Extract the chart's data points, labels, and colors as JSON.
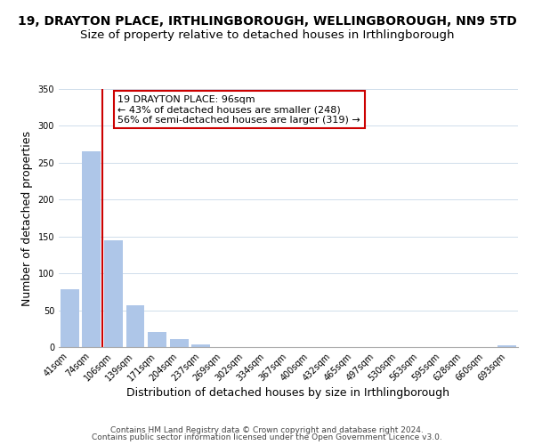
{
  "title_line1": "19, DRAYTON PLACE, IRTHLINGBOROUGH, WELLINGBOROUGH, NN9 5TD",
  "title_line2": "Size of property relative to detached houses in Irthlingborough",
  "xlabel": "Distribution of detached houses by size in Irthlingborough",
  "ylabel": "Number of detached properties",
  "bar_labels": [
    "41sqm",
    "74sqm",
    "106sqm",
    "139sqm",
    "171sqm",
    "204sqm",
    "237sqm",
    "269sqm",
    "302sqm",
    "334sqm",
    "367sqm",
    "400sqm",
    "432sqm",
    "465sqm",
    "497sqm",
    "530sqm",
    "563sqm",
    "595sqm",
    "628sqm",
    "660sqm",
    "693sqm"
  ],
  "bar_values": [
    78,
    265,
    145,
    57,
    20,
    11,
    4,
    0,
    0,
    0,
    0,
    0,
    0,
    0,
    0,
    0,
    0,
    0,
    0,
    0,
    2
  ],
  "bar_color": "#aec6e8",
  "vline_x_idx": 1.5,
  "vline_color": "#cc0000",
  "annotation_text": "19 DRAYTON PLACE: 96sqm\n← 43% of detached houses are smaller (248)\n56% of semi-detached houses are larger (319) →",
  "annotation_box_color": "#ffffff",
  "annotation_box_edge": "#cc0000",
  "ylim": [
    0,
    350
  ],
  "yticks": [
    0,
    50,
    100,
    150,
    200,
    250,
    300,
    350
  ],
  "footer_line1": "Contains HM Land Registry data © Crown copyright and database right 2024.",
  "footer_line2": "Contains public sector information licensed under the Open Government Licence v3.0.",
  "title_fontsize": 10,
  "subtitle_fontsize": 9.5,
  "axis_label_fontsize": 9,
  "tick_fontsize": 7,
  "footer_fontsize": 6.5,
  "annotation_fontsize": 8
}
